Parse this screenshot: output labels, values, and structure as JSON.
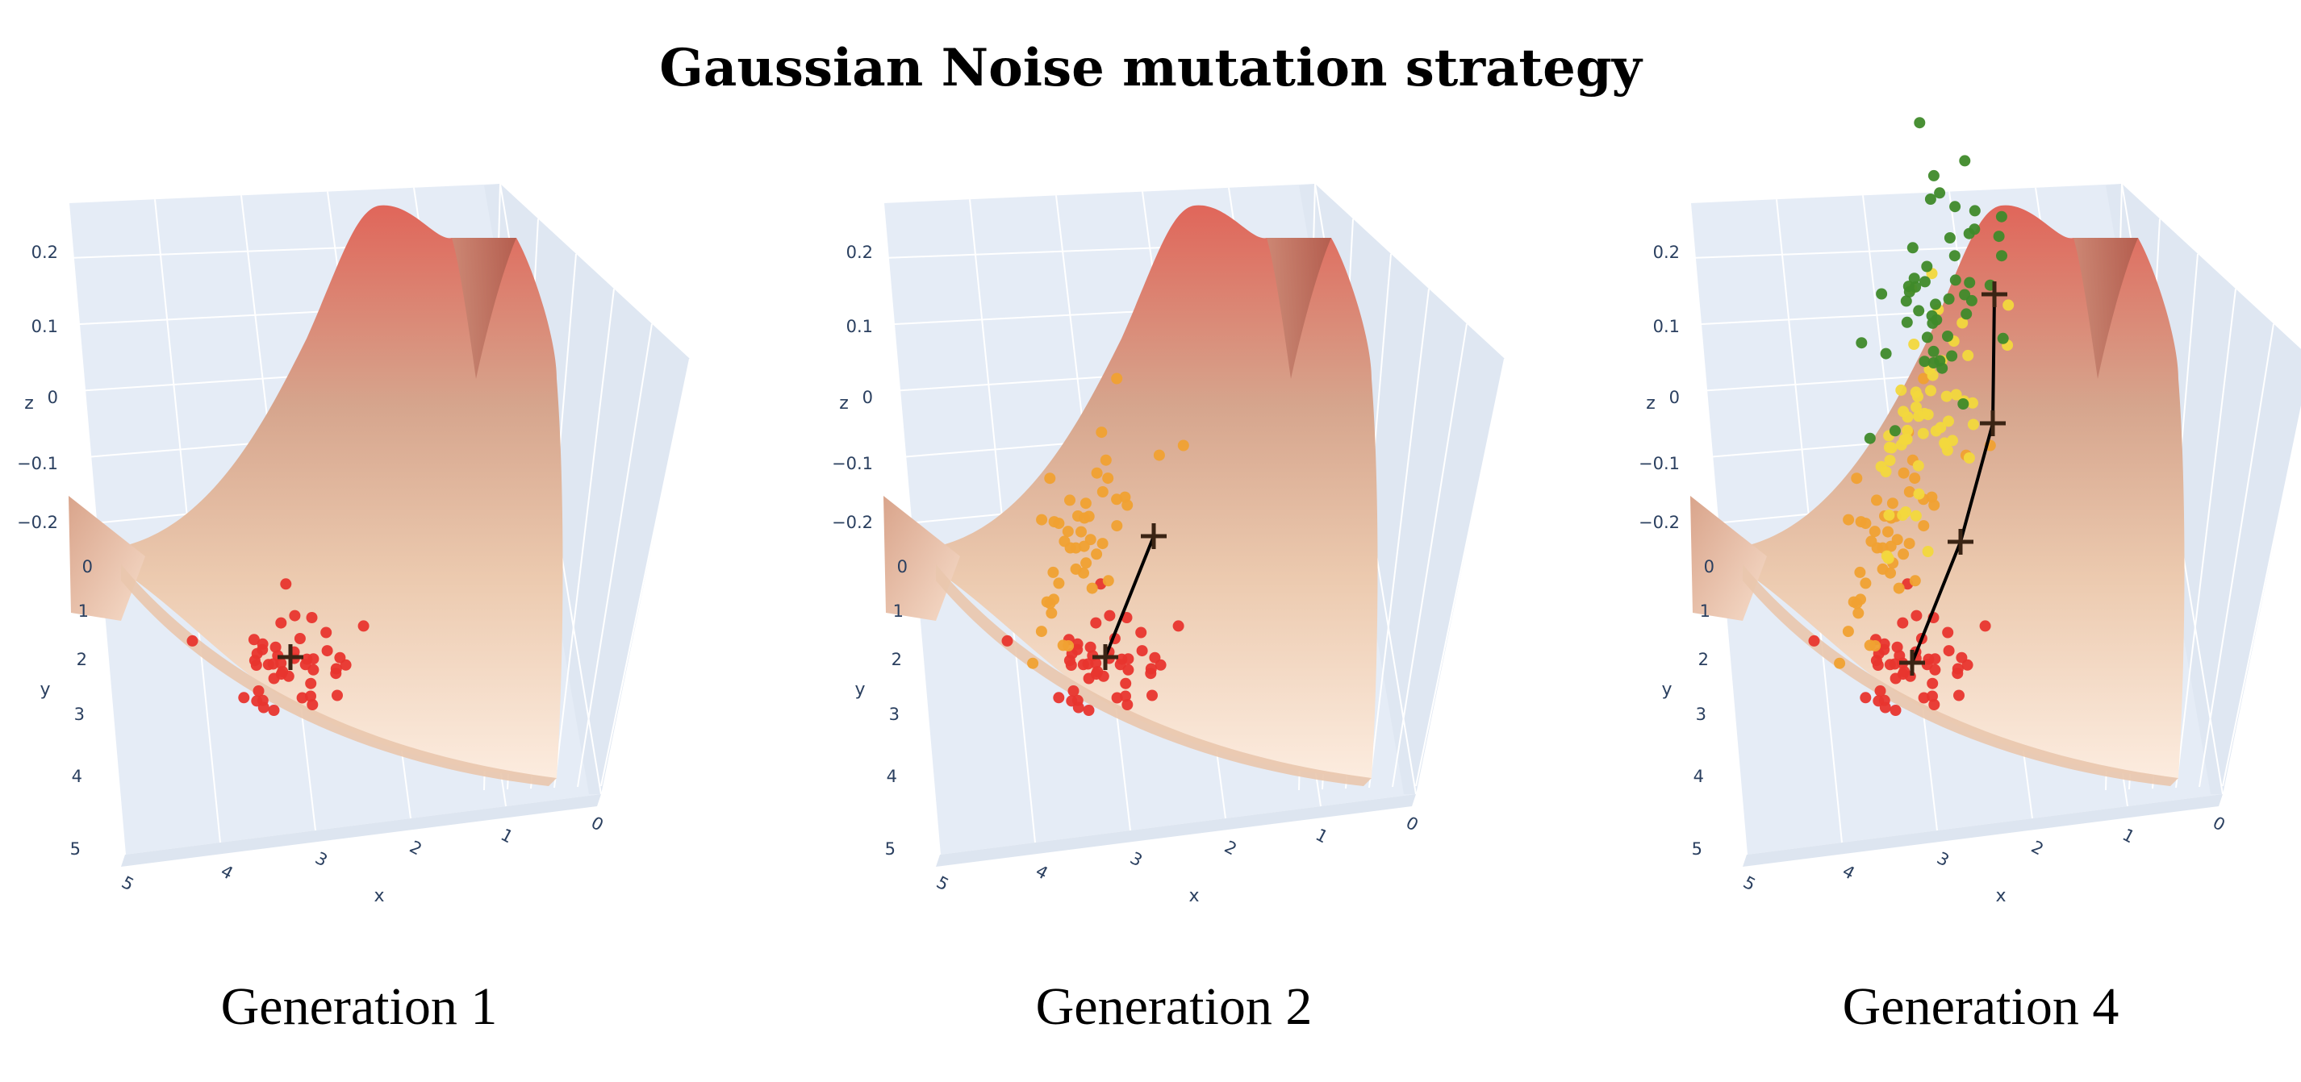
{
  "title": "Gaussian Noise mutation strategy",
  "colors": {
    "background": "#ffffff",
    "pane": "#e5ecf6",
    "grid": "#ffffff",
    "tick_text": "#2a3f5f",
    "surface_low": "#fbe7d6",
    "surface_mid": "#d9ad93",
    "surface_high": "#e2675a",
    "generation_colors": [
      "#e8352e",
      "#f0a132",
      "#f2d83d",
      "#3f8a2a"
    ],
    "path": "#000000"
  },
  "chart_data": [
    {
      "type": "scatter3d",
      "caption": "Generation 1",
      "xlabel": "x",
      "ylabel": "y",
      "zlabel": "z",
      "x_ticks": [
        "5",
        "4",
        "3",
        "2",
        "1",
        "0"
      ],
      "y_ticks": [
        "0",
        "1",
        "2",
        "3",
        "4",
        "5"
      ],
      "z_ticks": [
        "0.2",
        "0.1",
        "0",
        "−0.1",
        "−0.2"
      ],
      "generations_shown": [
        1
      ],
      "best_path": [
        {
          "x": 3.3,
          "y": 1.9
        }
      ]
    },
    {
      "type": "scatter3d",
      "caption": "Generation 2",
      "xlabel": "x",
      "ylabel": "y",
      "zlabel": "z",
      "x_ticks": [
        "5",
        "4",
        "3",
        "2",
        "1",
        "0"
      ],
      "y_ticks": [
        "0",
        "1",
        "2",
        "3",
        "4",
        "5"
      ],
      "z_ticks": [
        "0.2",
        "0.1",
        "0",
        "−0.1",
        "−0.2"
      ],
      "generations_shown": [
        1,
        2
      ],
      "best_path": [
        {
          "x": 3.3,
          "y": 1.9
        },
        {
          "x": 3.0,
          "y": 1.2
        }
      ]
    },
    {
      "type": "scatter3d",
      "caption": "Generation 4",
      "xlabel": "x",
      "ylabel": "y",
      "zlabel": "z",
      "x_ticks": [
        "5",
        "4",
        "3",
        "2",
        "1",
        "0"
      ],
      "y_ticks": [
        "0",
        "1",
        "2",
        "3",
        "4",
        "5"
      ],
      "z_ticks": [
        "0.2",
        "0.1",
        "0",
        "−0.1",
        "−0.2"
      ],
      "generations_shown": [
        1,
        2,
        3,
        4
      ],
      "best_path": [
        {
          "x": 3.4,
          "y": 2.0
        },
        {
          "x": 3.1,
          "y": 1.3
        },
        {
          "x": 2.6,
          "y": 0.9
        },
        {
          "x": 2.6,
          "y": 0.2
        }
      ]
    }
  ]
}
